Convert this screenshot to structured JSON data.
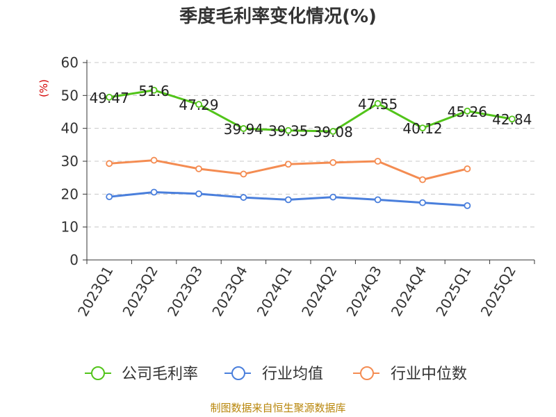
{
  "chart_data": {
    "type": "line",
    "title": "季度毛利率变化情况(%)",
    "ylabel": "(%)",
    "xlabel": "",
    "ylim": [
      0,
      60
    ],
    "yticks": [
      0,
      10,
      20,
      30,
      40,
      50,
      60
    ],
    "categories": [
      "2023Q1",
      "2023Q2",
      "2023Q3",
      "2023Q4",
      "2024Q1",
      "2024Q2",
      "2024Q3",
      "2024Q4",
      "2025Q1",
      "2025Q2"
    ],
    "grid": true,
    "legend_position": "bottom",
    "series": [
      {
        "name": "公司毛利率",
        "color": "#52c41a",
        "values": [
          49.47,
          51.6,
          47.29,
          39.94,
          39.35,
          39.08,
          47.55,
          40.12,
          45.26,
          42.84
        ],
        "labels": [
          "49.47",
          "51.6",
          "47.29",
          "39.94",
          "39.35",
          "39.08",
          "47.55",
          "40.12",
          "45.26",
          "42.84"
        ]
      },
      {
        "name": "行业均值",
        "color": "#4a7fdc",
        "values": [
          19.2,
          20.6,
          20.1,
          19.0,
          18.3,
          19.1,
          18.3,
          17.4,
          16.5,
          null
        ]
      },
      {
        "name": "行业中位数",
        "color": "#f48c52",
        "values": [
          29.3,
          30.3,
          27.7,
          26.1,
          29.1,
          29.6,
          30.0,
          24.4,
          27.7,
          null
        ]
      }
    ]
  },
  "source_text": "制图数据来自恒生聚源数据库"
}
